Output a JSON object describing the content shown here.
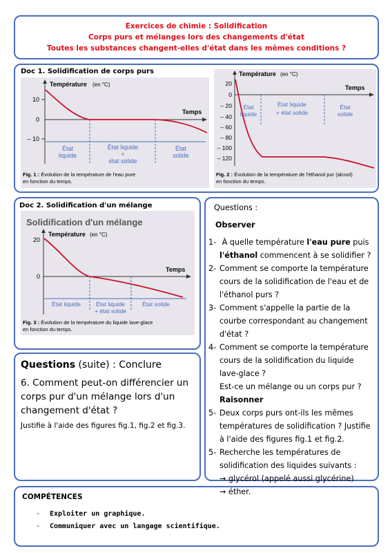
{
  "header": {
    "lines": [
      "Exercices de chimie : Solidification",
      "Corps purs et mélanges lors des changements d'état",
      "Toutes les substances changent-elles d'état dans les mêmes conditions ?"
    ]
  },
  "doc1": {
    "title": "Doc 1. Solidification de corps purs",
    "fig1": {
      "y_label": "Température",
      "y_unit": "(en °C)",
      "x_label": "Temps",
      "yticks": [
        "10",
        "0",
        "– 10"
      ],
      "regions": [
        [
          "État",
          "liquide"
        ],
        [
          "État liquide",
          "+",
          "état solide"
        ],
        [
          "État",
          "solide"
        ]
      ],
      "caption_label": "Fig. 1 :",
      "caption": [
        "Évolution de la température de l'eau pure",
        "en fonction du temps."
      ]
    },
    "fig2": {
      "y_label": "Température",
      "y_unit": "(en °C)",
      "x_label": "Temps",
      "yticks": [
        "20",
        "0",
        "– 20",
        "– 40",
        "– 60",
        "– 80",
        "– 100",
        "– 120"
      ],
      "regions": [
        [
          "État",
          "liquide"
        ],
        [
          "État liquide",
          "+ état solide"
        ],
        [
          "État",
          "solide"
        ]
      ],
      "caption_label": "Fig. 2 :",
      "caption": [
        "Évolution de la température de l'éthanol pur (alcool)",
        "en fonction du temps."
      ]
    }
  },
  "doc2": {
    "title": "Doc 2. Solidification d'un mélange",
    "fig3": {
      "heading": "Solidification d'un mélange",
      "y_label": "Température",
      "y_unit": "(en °C)",
      "x_label": "Temps",
      "yticks": [
        "20",
        "0"
      ],
      "regions": [
        [
          "État liquide"
        ],
        [
          "État liquide",
          "+ état solide"
        ],
        [
          "État solide"
        ]
      ],
      "caption_label": "Fig. 3 :",
      "caption": [
        "Évolution de la température du liquide lave-glace",
        "en fonction du temps."
      ]
    }
  },
  "questions": {
    "heading": "Questions :",
    "observe": "Observer",
    "reason": "Raisonner",
    "q1": {
      "num": "1-",
      "a": "À quelle température ",
      "b": "l'eau pure",
      "c": " puis ",
      "d": "l'éthanol",
      "e": " commencent à se solidifier ?"
    },
    "q2": {
      "num": "2-",
      "text": "Comment se comporte la température cours de la solidification de l'eau et de l'éthanol purs ?"
    },
    "q3": {
      "num": "3-",
      "text": "Comment s'appelle la partie de la courbe correspondant au changement d'état ?"
    },
    "q4": {
      "num": "4-",
      "text": "Comment se comporte la température cours de la solidification du liquide lave-glace ?",
      "extra": "Est-ce un mélange ou un corps pur ?"
    },
    "q5": {
      "num": "5-",
      "text": "Deux corps purs ont-ils les mêmes températures de solidification ? Justifie à l'aide des figures fig.1 et fig.2."
    },
    "q6": {
      "num": "5-",
      "text": "Recherche les températures de solidification des liquides suivants :",
      "items": [
        "→ glycérol (appelé aussi glycérine)",
        "→ éther."
      ]
    }
  },
  "conclusion": {
    "heading": "Questions",
    "suffix": " (suite) : Conclure",
    "question": "6. Comment peut-on différencier un corps pur d'un mélange lors d'un changement d'état ?",
    "note": "Justifie à l'aide des figures fig.1, fig.2 et fig.3."
  },
  "competences": {
    "title": "COMPÉTENCES",
    "items": [
      {
        "bullet": "-",
        "text": "Exploiter un graphique."
      },
      {
        "bullet": "-",
        "text": "Communiquer avec un langage scientifique."
      }
    ]
  }
}
